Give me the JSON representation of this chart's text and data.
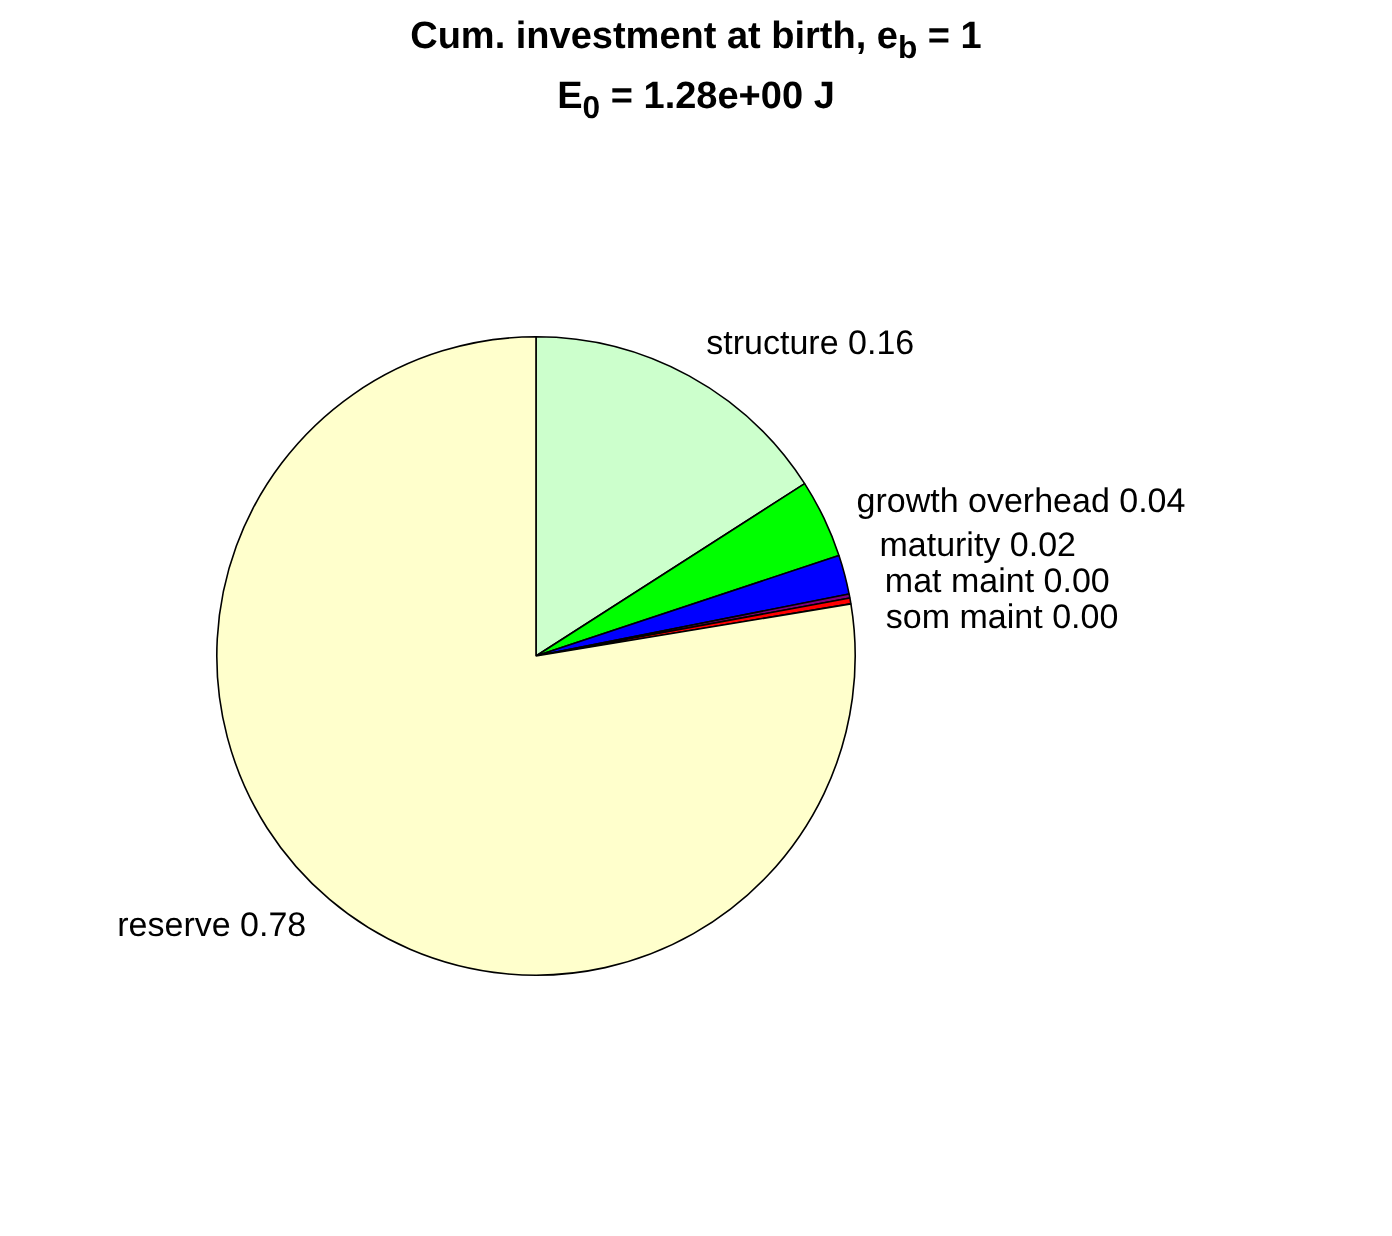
{
  "chart_data": {
    "type": "pie",
    "title": "Cum. investment at birth, e$_{b}$ = 1",
    "subtitle": "E$_{0}$ = 1.28e+00 J",
    "categories": [
      "structure",
      "growth overhead",
      "maturity",
      "mat maint",
      "som maint",
      "reserve"
    ],
    "values": [
      0.16,
      0.04,
      0.02,
      0.002,
      0.003,
      0.78
    ],
    "value_labels": [
      "0.16",
      "0.04",
      "0.02",
      "0.00",
      "0.00",
      "0.78"
    ],
    "colors": [
      "#ccffcc",
      "#00ff00",
      "#0000ff",
      "#800080",
      "#ff0000",
      "#ffffcc"
    ]
  }
}
